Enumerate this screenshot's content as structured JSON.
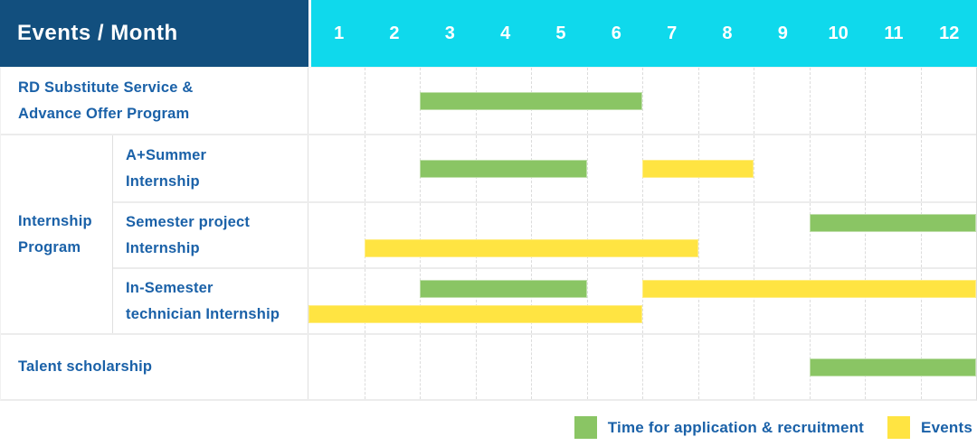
{
  "header": {
    "title": "Events / Month"
  },
  "chart_data": {
    "type": "gantt",
    "x": {
      "unit": "month",
      "ticks": [
        "1",
        "2",
        "3",
        "4",
        "5",
        "6",
        "7",
        "8",
        "9",
        "10",
        "11",
        "12"
      ],
      "range": [
        1,
        12
      ]
    },
    "legend": [
      {
        "key": "application",
        "label": "Time for application & recruitment",
        "color": "#8AC564"
      },
      {
        "key": "event",
        "label": "Events",
        "color": "#FFE442"
      }
    ],
    "rows": [
      {
        "group": "",
        "label": "RD Substitute Service & Advance Offer Program",
        "tracks": [
          [
            {
              "type": "application",
              "start": 3,
              "end": 6
            }
          ]
        ]
      },
      {
        "group": "Internship Program",
        "label": "A+Summer Internship",
        "tracks": [
          [
            {
              "type": "application",
              "start": 3,
              "end": 5
            },
            {
              "type": "event",
              "start": 7,
              "end": 8
            }
          ]
        ]
      },
      {
        "group": "Internship Program",
        "label": "Semester project Internship",
        "tracks": [
          [
            {
              "type": "application",
              "start": 10,
              "end": 12
            }
          ],
          [
            {
              "type": "event",
              "start": 2,
              "end": 7
            }
          ]
        ]
      },
      {
        "group": "Internship Program",
        "label": "In-Semester technician Internship",
        "tracks": [
          [
            {
              "type": "application",
              "start": 3,
              "end": 5
            },
            {
              "type": "event",
              "start": 7,
              "end": 12
            }
          ],
          [
            {
              "type": "event",
              "start": 1,
              "end": 6
            }
          ]
        ]
      },
      {
        "group": "",
        "label": "Talent scholarship",
        "tracks": [
          [
            {
              "type": "application",
              "start": 10,
              "end": 12
            }
          ]
        ]
      }
    ]
  },
  "colors": {
    "header_bg": "#124F7E",
    "month_bar_bg": "#0FD9EC",
    "label_text": "#1A61A8",
    "bar_green": "#8AC564",
    "bar_yellow": "#FFE442",
    "grid_line": "#DCDCDC",
    "row_divider": "#ECECEC"
  }
}
